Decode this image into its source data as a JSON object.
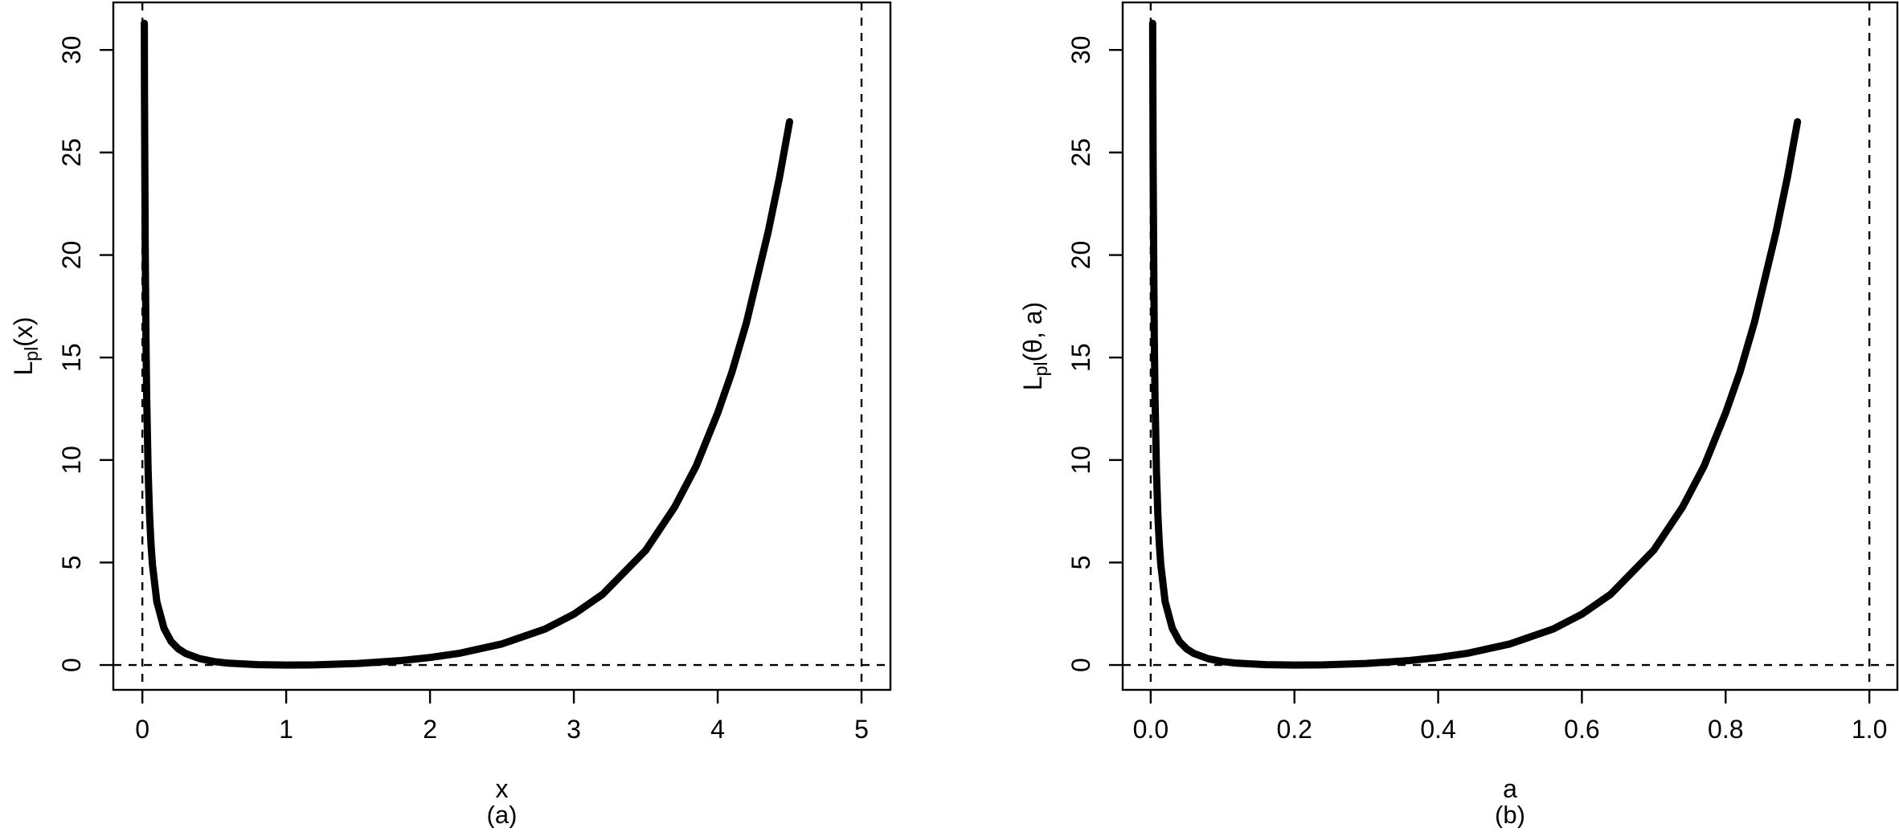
{
  "chart_data": {
    "type": "line",
    "title": "",
    "legend": "none",
    "grid": "off",
    "style": {
      "line_color": "#000000",
      "background": "#ffffff",
      "dashed_line_color": "#000000"
    },
    "panels": [
      {
        "caption": "(a)",
        "xlabel": "x",
        "ylabel": "Lpl(x)",
        "ylabel_parts": [
          {
            "t": "L",
            "sub": false
          },
          {
            "t": "pl",
            "sub": true
          },
          {
            "t": "(x)",
            "sub": false
          }
        ],
        "xlim": [
          -0.202,
          5.201
        ],
        "ylim": [
          -1.21,
          32.32
        ],
        "xticks": [
          0,
          1,
          2,
          3,
          4,
          5
        ],
        "xtick_labels": [
          "0",
          "1",
          "2",
          "3",
          "4",
          "5"
        ],
        "yticks": [
          0,
          5,
          10,
          15,
          20,
          25,
          30
        ],
        "ytick_labels": [
          "0",
          "5",
          "10",
          "15",
          "20",
          "25",
          "30"
        ],
        "dashed_vlines": [
          0,
          5
        ],
        "dashed_hlines": [
          0
        ],
        "x": [
          0.0134,
          0.015,
          0.017,
          0.02,
          0.025,
          0.03,
          0.04,
          0.05,
          0.06,
          0.07,
          0.1,
          0.15,
          0.2,
          0.25,
          0.3,
          0.4,
          0.5,
          0.6,
          0.8,
          1.0,
          1.2,
          1.5,
          1.8,
          2.0,
          2.2,
          2.5,
          2.8,
          3.0,
          3.2,
          3.5,
          3.7,
          3.85,
          4.0,
          4.1,
          4.2,
          4.35,
          4.43,
          4.5
        ],
        "y": [
          31.3,
          27.8,
          24.3,
          20.4,
          16.0,
          13.1,
          9.5,
          7.3,
          5.9,
          4.9,
          3.1,
          1.8,
          1.15,
          0.79,
          0.57,
          0.31,
          0.17,
          0.09,
          0.02,
          0.0,
          0.01,
          0.08,
          0.22,
          0.37,
          0.57,
          1.03,
          1.76,
          2.48,
          3.45,
          5.6,
          7.7,
          9.7,
          12.3,
          14.3,
          16.7,
          21.1,
          23.8,
          26.5
        ]
      },
      {
        "caption": "(b)",
        "xlabel": "a",
        "ylabel": "Lpl(θ, a)",
        "ylabel_parts": [
          {
            "t": "L",
            "sub": false
          },
          {
            "t": "pl",
            "sub": true
          },
          {
            "t": "(θ, a)",
            "sub": false
          }
        ],
        "xlim": [
          -0.039,
          1.039
        ],
        "ylim": [
          -1.21,
          32.32
        ],
        "xticks": [
          0,
          0.2,
          0.4,
          0.6,
          0.8,
          1.0
        ],
        "xtick_labels": [
          "0.0",
          "0.2",
          "0.4",
          "0.6",
          "0.8",
          "1.0"
        ],
        "yticks": [
          0,
          5,
          10,
          15,
          20,
          25,
          30
        ],
        "ytick_labels": [
          "0",
          "5",
          "10",
          "15",
          "20",
          "25",
          "30"
        ],
        "dashed_vlines": [
          0,
          1
        ],
        "dashed_hlines": [
          0
        ],
        "x": [
          0.0027,
          0.003,
          0.0034,
          0.004,
          0.005,
          0.006,
          0.008,
          0.01,
          0.012,
          0.014,
          0.02,
          0.03,
          0.04,
          0.05,
          0.06,
          0.08,
          0.1,
          0.12,
          0.16,
          0.2,
          0.24,
          0.3,
          0.36,
          0.4,
          0.44,
          0.5,
          0.56,
          0.6,
          0.64,
          0.7,
          0.74,
          0.77,
          0.8,
          0.82,
          0.84,
          0.87,
          0.886,
          0.9
        ],
        "y": [
          31.3,
          27.8,
          24.3,
          20.4,
          16.0,
          13.1,
          9.5,
          7.3,
          5.9,
          4.9,
          3.1,
          1.8,
          1.15,
          0.79,
          0.57,
          0.31,
          0.17,
          0.09,
          0.02,
          0.0,
          0.01,
          0.08,
          0.22,
          0.37,
          0.57,
          1.03,
          1.76,
          2.48,
          3.45,
          5.6,
          7.7,
          9.7,
          12.3,
          14.3,
          16.7,
          21.1,
          23.8,
          26.5
        ]
      }
    ]
  }
}
